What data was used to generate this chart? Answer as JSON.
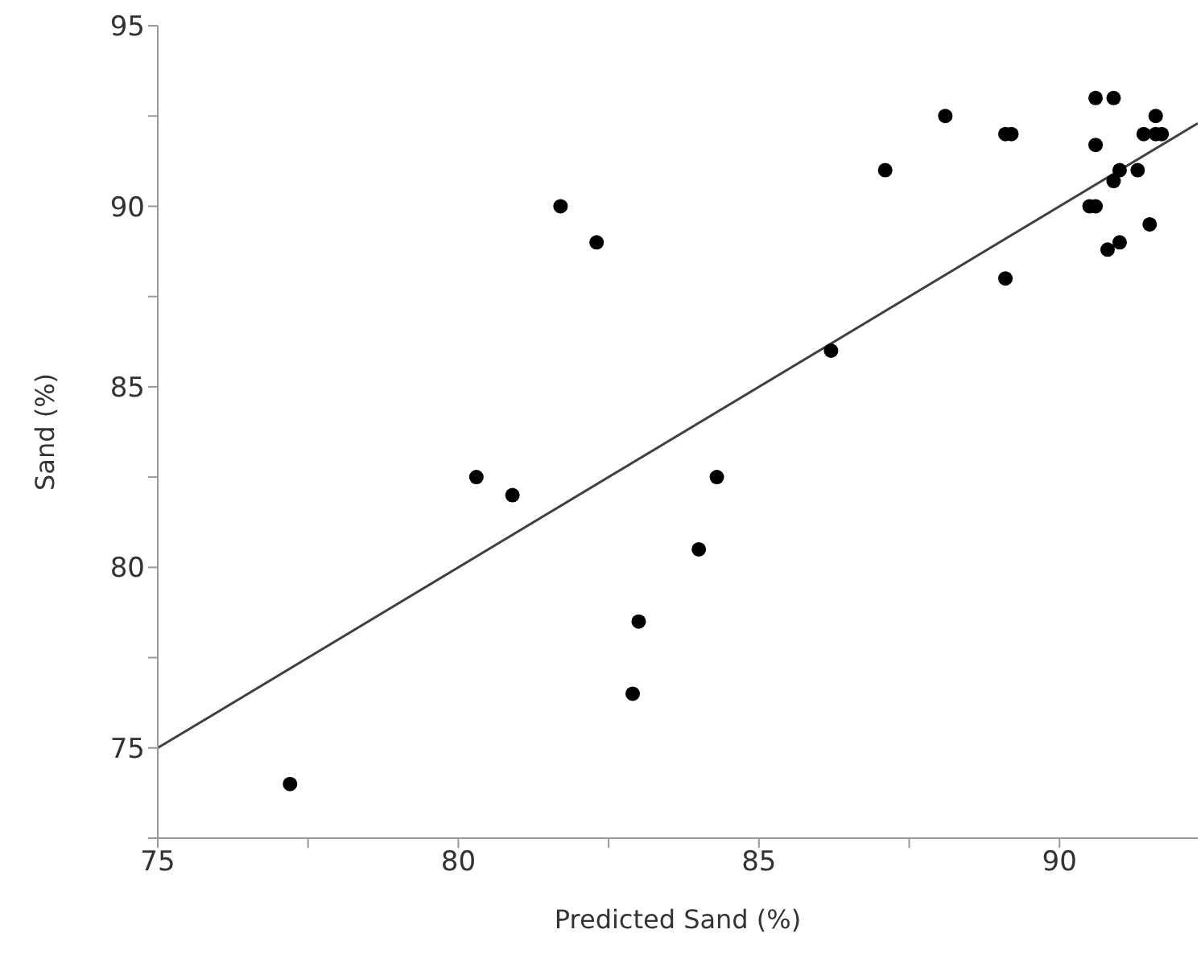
{
  "chart_data": {
    "type": "scatter",
    "xlabel": "Predicted Sand (%)",
    "ylabel": "Sand (%)",
    "xlim": [
      75,
      92.3
    ],
    "ylim": [
      72.5,
      95
    ],
    "xticks": [
      75,
      {
        "value": 77.5,
        "label": null
      },
      80,
      {
        "value": 82.5,
        "label": null
      },
      85,
      {
        "value": 87.5,
        "label": null
      },
      90
    ],
    "yticks": [
      {
        "value": 72.5,
        "label": null
      },
      75,
      {
        "value": 77.5,
        "label": null
      },
      80,
      {
        "value": 82.5,
        "label": null
      },
      85,
      {
        "value": 87.5,
        "label": null
      },
      90,
      {
        "value": 92.5,
        "label": null
      },
      95
    ],
    "grid": false,
    "legend": false,
    "marker": "circle",
    "series": [
      {
        "color": "#000000",
        "x": [
          77.2,
          80.3,
          80.9,
          81.7,
          82.3,
          83.0,
          82.9,
          84.0,
          84.3,
          86.2,
          87.1,
          88.1,
          89.1,
          89.2,
          89.1,
          90.6,
          90.9,
          91.6,
          90.6,
          91.4,
          91.6,
          91.7,
          91.0,
          90.9,
          91.3,
          90.5,
          90.6,
          91.5,
          90.8,
          91.0
        ],
        "values": [
          74.0,
          82.5,
          82.0,
          90.0,
          89.0,
          78.5,
          76.5,
          80.5,
          82.5,
          86.0,
          91.0,
          92.5,
          92.0,
          92.0,
          88.0,
          93.0,
          93.0,
          92.5,
          91.7,
          92.0,
          92.0,
          92.0,
          91.0,
          90.7,
          91.0,
          90.0,
          90.0,
          89.5,
          88.8,
          89.0
        ]
      },
      {
        "type": "line",
        "color": "#404040",
        "line_style": "solid",
        "marker": "none",
        "x": [
          75,
          92.3
        ],
        "values": [
          75.0,
          92.3
        ]
      }
    ]
  }
}
